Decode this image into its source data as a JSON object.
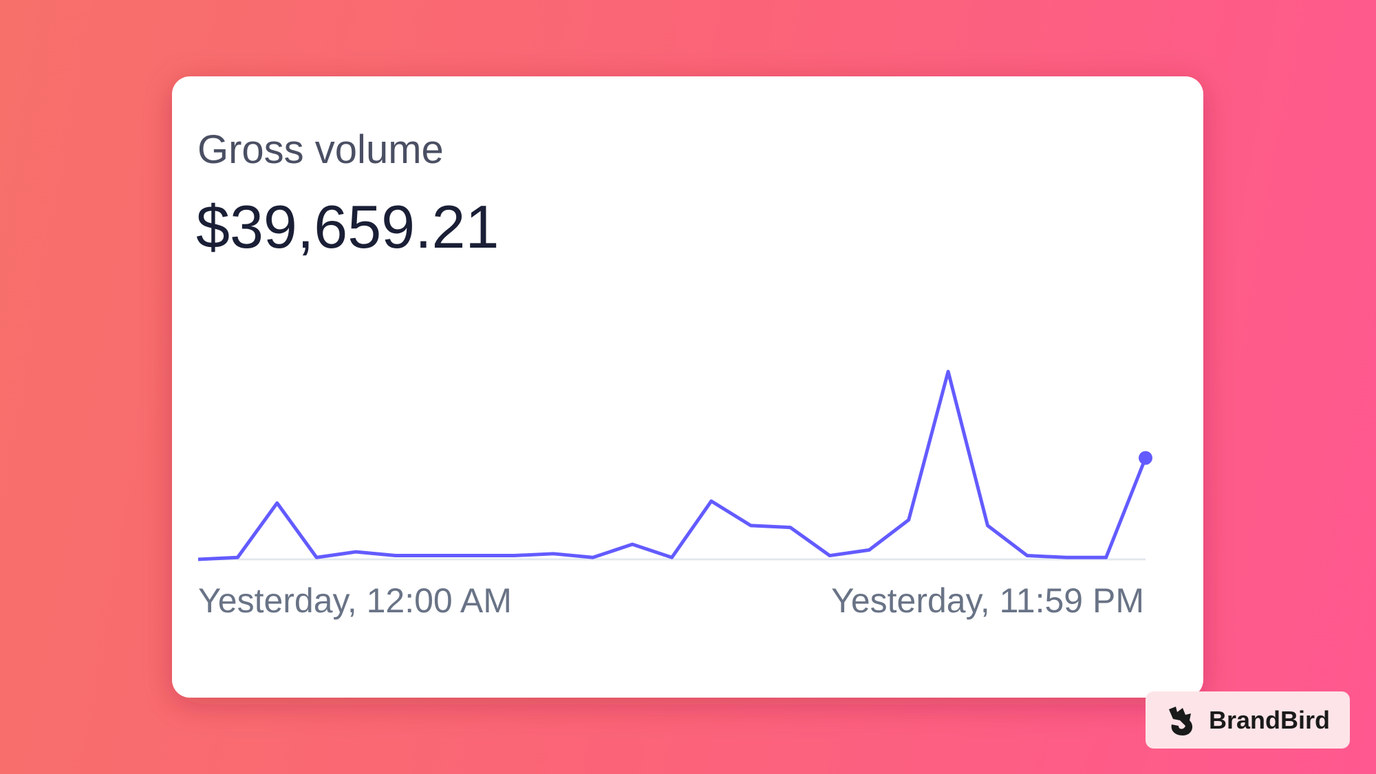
{
  "chart_data": {
    "type": "line",
    "title": "Gross volume",
    "subtitle": "$39,659.21",
    "values": [
      0,
      1,
      30,
      1,
      4,
      2,
      2,
      2,
      2,
      3,
      1,
      8,
      1,
      31,
      18,
      17,
      2,
      5,
      21,
      100,
      18,
      2,
      1,
      1,
      54
    ],
    "ylim": [
      0,
      100
    ],
    "color": "#635bff",
    "xlabels": [
      "Yesterday, 12:00 AM",
      "Yesterday, 11:59 PM"
    ]
  },
  "watermark": {
    "name": "BrandBird"
  }
}
